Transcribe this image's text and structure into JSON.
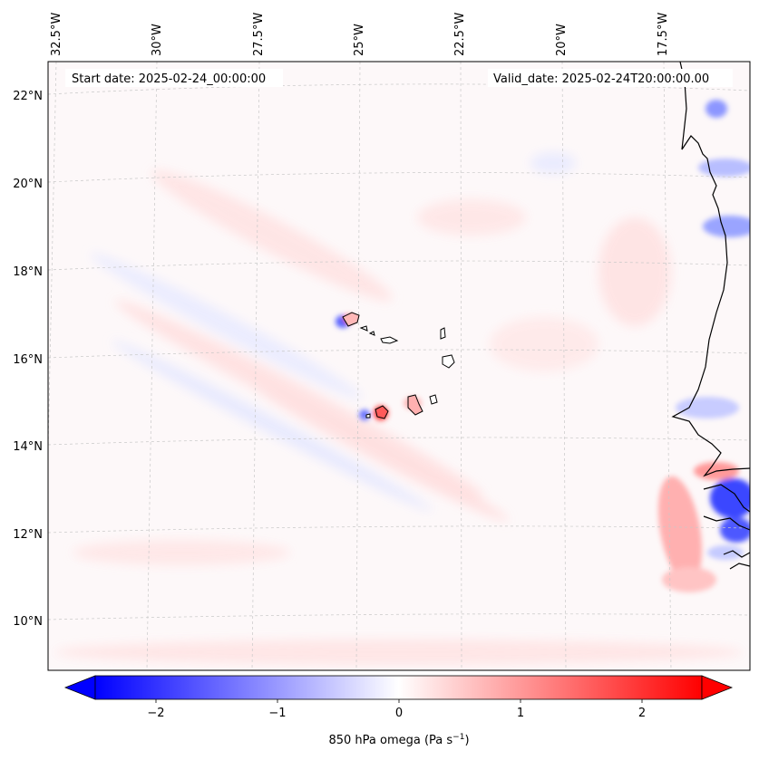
{
  "header": {
    "start_date": "Start date: 2025-02-24_00:00:00",
    "valid_date": "Valid_date: 2025-02-24T20:00:00.00"
  },
  "map": {
    "longitude_labels": [
      "32.5°W",
      "30°W",
      "27.5°W",
      "25°W",
      "22.5°W",
      "20°W",
      "17.5°W"
    ],
    "latitude_labels": [
      "22°N",
      "20°N",
      "18°N",
      "16°N",
      "14°N",
      "12°N",
      "10°N"
    ],
    "field": "850 hPa omega"
  },
  "colorbar": {
    "ticks": [
      "−2",
      "−1",
      "0",
      "1",
      "2"
    ],
    "label": "850 hPa omega (Pa s",
    "label_sup": "−1",
    "label_end": ")",
    "min_color": "#0000ff",
    "mid_color": "#ffffff",
    "max_color": "#ff0000"
  }
}
